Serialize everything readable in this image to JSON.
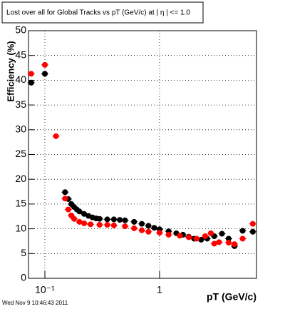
{
  "chart_data": {
    "type": "scatter",
    "title": "Lost over all for Global Tracks vs pT (GeV/c) at | η | <= 1.0",
    "x_label": "pT (GeV/c)",
    "y_label": "Efficiency (%)",
    "footer": "Wed Nov  9 10:46:43 2011",
    "log_x": true,
    "grid": true,
    "xlim": [
      0.072,
      7.0
    ],
    "ylim": [
      0,
      50
    ],
    "xticks": [
      {
        "value": 0.1,
        "label": "10⁻¹"
      },
      1
    ],
    "yticks": [
      0,
      5,
      10,
      15,
      20,
      25,
      30,
      35,
      40,
      45,
      50
    ],
    "series": [
      {
        "color": "#000000",
        "x": [
          0.076,
          0.1,
          0.15,
          0.16,
          0.17,
          0.18,
          0.19,
          0.2,
          0.22,
          0.24,
          0.26,
          0.28,
          0.3,
          0.35,
          0.4,
          0.45,
          0.5,
          0.6,
          0.7,
          0.8,
          0.9,
          1.0,
          1.2,
          1.4,
          1.6,
          1.8,
          2.0,
          2.3,
          2.6,
          3.0,
          3.5,
          4.0,
          4.5,
          5.3,
          6.5
        ],
        "values": [
          39.5,
          41.3,
          17.4,
          16.0,
          15.0,
          14.4,
          13.9,
          13.5,
          13.0,
          12.6,
          12.3,
          12.1,
          12.0,
          11.9,
          11.9,
          11.8,
          11.7,
          11.4,
          11.0,
          10.6,
          10.2,
          9.9,
          9.5,
          9.1,
          8.8,
          8.4,
          8.0,
          7.8,
          8.0,
          8.5,
          9.0,
          8.0,
          6.5,
          9.6,
          9.4
        ]
      },
      {
        "color": "#ff0000",
        "x": [
          0.076,
          0.1,
          0.125,
          0.15,
          0.16,
          0.17,
          0.18,
          0.2,
          0.22,
          0.25,
          0.3,
          0.35,
          0.4,
          0.5,
          0.6,
          0.7,
          0.8,
          1.0,
          1.2,
          1.5,
          1.8,
          2.1,
          2.5,
          2.8,
          3.0,
          3.3,
          4.0,
          4.5,
          5.3,
          6.5
        ],
        "values": [
          41.3,
          43.1,
          28.7,
          16.1,
          13.9,
          12.7,
          12.0,
          11.4,
          11.1,
          10.9,
          10.8,
          10.8,
          10.7,
          10.5,
          10.1,
          9.7,
          9.4,
          9.2,
          8.8,
          8.6,
          8.3,
          8.0,
          8.5,
          9.1,
          7.0,
          7.3,
          7.2,
          6.9,
          8.0,
          11.0
        ]
      }
    ]
  }
}
